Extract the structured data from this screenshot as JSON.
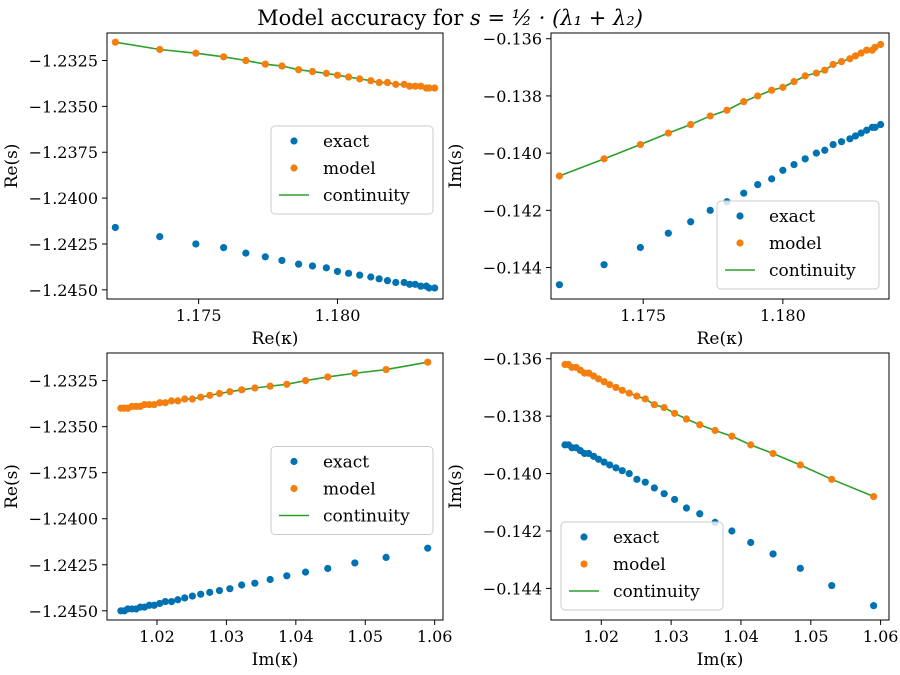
{
  "title": {
    "main": "Model accuracy for ",
    "expr": "s = ½ · (λ₁ + λ₂)"
  },
  "colors": {
    "exact": "#0072b2",
    "model": "#f47f0e",
    "continuity": "#2ca02c"
  },
  "chart_data": [
    {
      "type": "scatter",
      "xlabel": "Re(κ)",
      "ylabel": "Re(s)",
      "xlim": [
        1.1717,
        1.1838
      ],
      "ylim": [
        -1.2455,
        -1.231
      ],
      "xticks": [
        "1.175",
        "1.180"
      ],
      "yticks": [
        "−1.2325",
        "−1.2350",
        "−1.2375",
        "−1.2400",
        "−1.2425",
        "−1.2450"
      ],
      "xtick_values": [
        1.175,
        1.18
      ],
      "ytick_values": [
        -1.2325,
        -1.235,
        -1.2375,
        -1.24,
        -1.2425,
        -1.245
      ],
      "legend": [
        "exact",
        "model",
        "continuity"
      ],
      "legend_position": "center-right",
      "x": [
        1.172,
        1.1736,
        1.1749,
        1.1759,
        1.1767,
        1.1774,
        1.178,
        1.1786,
        1.1791,
        1.1796,
        1.18,
        1.1804,
        1.1808,
        1.1812,
        1.1815,
        1.1818,
        1.1821,
        1.1824,
        1.1826,
        1.1828,
        1.183,
        1.1832,
        1.1833,
        1.1835
      ],
      "series": [
        {
          "name": "exact",
          "kind": "scatter",
          "values": [
            -1.2416,
            -1.2421,
            -1.2425,
            -1.2427,
            -1.243,
            -1.2432,
            -1.2434,
            -1.2436,
            -1.2437,
            -1.2438,
            -1.244,
            -1.2441,
            -1.2442,
            -1.2443,
            -1.2444,
            -1.2445,
            -1.2446,
            -1.2446,
            -1.2447,
            -1.2447,
            -1.2448,
            -1.2448,
            -1.2449,
            -1.2449
          ]
        },
        {
          "name": "model",
          "kind": "scatter",
          "values": [
            -1.2315,
            -1.2319,
            -1.2321,
            -1.2323,
            -1.2325,
            -1.2327,
            -1.2328,
            -1.233,
            -1.2331,
            -1.2332,
            -1.2333,
            -1.2334,
            -1.2335,
            -1.2336,
            -1.2337,
            -1.2337,
            -1.2338,
            -1.2338,
            -1.2339,
            -1.2339,
            -1.2339,
            -1.234,
            -1.234,
            -1.234
          ]
        },
        {
          "name": "continuity",
          "kind": "line",
          "values": [
            -1.2315,
            -1.2319,
            -1.2321,
            -1.2323,
            -1.2325,
            -1.2327,
            -1.2328,
            -1.233,
            -1.2331,
            -1.2332,
            -1.2333,
            -1.2334,
            -1.2335,
            -1.2336,
            -1.2337,
            -1.2337,
            -1.2338,
            -1.2338,
            -1.2339,
            -1.2339,
            -1.2339,
            -1.234,
            -1.234,
            -1.234
          ]
        }
      ]
    },
    {
      "type": "scatter",
      "xlabel": "Re(κ)",
      "ylabel": "Im(s)",
      "xlim": [
        1.1717,
        1.1838
      ],
      "ylim": [
        -0.1451,
        -0.1358
      ],
      "xticks": [
        "1.175",
        "1.180"
      ],
      "yticks": [
        "−0.136",
        "−0.138",
        "−0.140",
        "−0.142",
        "−0.144"
      ],
      "xtick_values": [
        1.175,
        1.18
      ],
      "ytick_values": [
        -0.136,
        -0.138,
        -0.14,
        -0.142,
        -0.144
      ],
      "legend": [
        "exact",
        "model",
        "continuity"
      ],
      "legend_position": "lower-right",
      "x": [
        1.172,
        1.1736,
        1.1749,
        1.1759,
        1.1767,
        1.1774,
        1.178,
        1.1786,
        1.1791,
        1.1796,
        1.18,
        1.1804,
        1.1808,
        1.1812,
        1.1815,
        1.1818,
        1.1821,
        1.1824,
        1.1826,
        1.1828,
        1.183,
        1.1832,
        1.1833,
        1.1835
      ],
      "series": [
        {
          "name": "exact",
          "kind": "scatter",
          "values": [
            -0.1446,
            -0.1439,
            -0.1433,
            -0.1428,
            -0.1424,
            -0.142,
            -0.1417,
            -0.1414,
            -0.1411,
            -0.1409,
            -0.1406,
            -0.1404,
            -0.1402,
            -0.14,
            -0.1399,
            -0.1397,
            -0.1396,
            -0.1395,
            -0.1394,
            -0.1393,
            -0.1392,
            -0.1391,
            -0.1391,
            -0.139
          ]
        },
        {
          "name": "model",
          "kind": "scatter",
          "values": [
            -0.1408,
            -0.1402,
            -0.1397,
            -0.1393,
            -0.139,
            -0.1387,
            -0.1385,
            -0.1382,
            -0.138,
            -0.1378,
            -0.1377,
            -0.1375,
            -0.1373,
            -0.1372,
            -0.1371,
            -0.1369,
            -0.1368,
            -0.1367,
            -0.1366,
            -0.1365,
            -0.1364,
            -0.1364,
            -0.1363,
            -0.1362
          ]
        },
        {
          "name": "continuity",
          "kind": "line",
          "values": [
            -0.1408,
            -0.1402,
            -0.1397,
            -0.1393,
            -0.139,
            -0.1387,
            -0.1385,
            -0.1382,
            -0.138,
            -0.1378,
            -0.1377,
            -0.1375,
            -0.1373,
            -0.1372,
            -0.1371,
            -0.1369,
            -0.1368,
            -0.1367,
            -0.1366,
            -0.1365,
            -0.1364,
            -0.1364,
            -0.1363,
            -0.1362
          ]
        }
      ]
    },
    {
      "type": "scatter",
      "xlabel": "Im(κ)",
      "ylabel": "Re(s)",
      "xlim": [
        1.0128,
        1.0612
      ],
      "ylim": [
        -1.2455,
        -1.231
      ],
      "xticks": [
        "1.02",
        "1.03",
        "1.04",
        "1.05",
        "1.06"
      ],
      "yticks": [
        "−1.2325",
        "−1.2350",
        "−1.2375",
        "−1.2400",
        "−1.2425",
        "−1.2450"
      ],
      "xtick_values": [
        1.02,
        1.03,
        1.04,
        1.05,
        1.06
      ],
      "ytick_values": [
        -1.2325,
        -1.235,
        -1.2375,
        -1.24,
        -1.2425,
        -1.245
      ],
      "legend": [
        "exact",
        "model",
        "continuity"
      ],
      "legend_position": "center-right",
      "x": [
        1.059,
        1.053,
        1.0485,
        1.0446,
        1.0414,
        1.0387,
        1.0363,
        1.0341,
        1.0322,
        1.0305,
        1.029,
        1.0276,
        1.0263,
        1.0251,
        1.024,
        1.023,
        1.0221,
        1.0212,
        1.0204,
        1.0196,
        1.0189,
        1.0182,
        1.0176,
        1.017,
        1.0164,
        1.0158,
        1.0153,
        1.0148
      ],
      "series": [
        {
          "name": "exact",
          "kind": "scatter",
          "values": [
            -1.2416,
            -1.2421,
            -1.2424,
            -1.2427,
            -1.2429,
            -1.2431,
            -1.2433,
            -1.2435,
            -1.2436,
            -1.2438,
            -1.2439,
            -1.244,
            -1.2441,
            -1.2442,
            -1.2443,
            -1.2444,
            -1.2445,
            -1.2445,
            -1.2446,
            -1.2447,
            -1.2447,
            -1.2448,
            -1.2448,
            -1.2449,
            -1.2449,
            -1.2449,
            -1.245,
            -1.245
          ]
        },
        {
          "name": "model",
          "kind": "scatter",
          "values": [
            -1.2315,
            -1.2319,
            -1.2321,
            -1.2323,
            -1.2325,
            -1.2327,
            -1.2328,
            -1.2329,
            -1.233,
            -1.2331,
            -1.2332,
            -1.2333,
            -1.2334,
            -1.2335,
            -1.2335,
            -1.2336,
            -1.2336,
            -1.2337,
            -1.2337,
            -1.2338,
            -1.2338,
            -1.2338,
            -1.2339,
            -1.2339,
            -1.2339,
            -1.234,
            -1.234,
            -1.234
          ]
        },
        {
          "name": "continuity",
          "kind": "line",
          "values": [
            -1.2315,
            -1.2319,
            -1.2321,
            -1.2323,
            -1.2325,
            -1.2327,
            -1.2328,
            -1.2329,
            -1.233,
            -1.2331,
            -1.2332,
            -1.2333,
            -1.2334,
            -1.2335,
            -1.2335,
            -1.2336,
            -1.2336,
            -1.2337,
            -1.2337,
            -1.2338,
            -1.2338,
            -1.2338,
            -1.2339,
            -1.2339,
            -1.2339,
            -1.234,
            -1.234,
            -1.234
          ]
        }
      ]
    },
    {
      "type": "scatter",
      "xlabel": "Im(κ)",
      "ylabel": "Im(s)",
      "xlim": [
        1.0128,
        1.0612
      ],
      "ylim": [
        -0.1451,
        -0.1358
      ],
      "xticks": [
        "1.02",
        "1.03",
        "1.04",
        "1.05",
        "1.06"
      ],
      "yticks": [
        "−0.136",
        "−0.138",
        "−0.140",
        "−0.142",
        "−0.144"
      ],
      "xtick_values": [
        1.02,
        1.03,
        1.04,
        1.05,
        1.06
      ],
      "ytick_values": [
        -0.136,
        -0.138,
        -0.14,
        -0.142,
        -0.144
      ],
      "legend": [
        "exact",
        "model",
        "continuity"
      ],
      "legend_position": "lower-left",
      "x": [
        1.059,
        1.053,
        1.0485,
        1.0446,
        1.0414,
        1.0387,
        1.0363,
        1.0341,
        1.0322,
        1.0305,
        1.029,
        1.0276,
        1.0263,
        1.0251,
        1.024,
        1.023,
        1.0221,
        1.0212,
        1.0204,
        1.0196,
        1.0189,
        1.0182,
        1.0176,
        1.017,
        1.0164,
        1.0158,
        1.0153,
        1.0148
      ],
      "series": [
        {
          "name": "exact",
          "kind": "scatter",
          "values": [
            -0.1446,
            -0.1439,
            -0.1433,
            -0.1428,
            -0.1424,
            -0.142,
            -0.1417,
            -0.1414,
            -0.1412,
            -0.1409,
            -0.1407,
            -0.1405,
            -0.1403,
            -0.1402,
            -0.14,
            -0.1399,
            -0.1398,
            -0.1397,
            -0.1396,
            -0.1395,
            -0.1394,
            -0.1393,
            -0.1393,
            -0.1392,
            -0.1391,
            -0.1391,
            -0.139,
            -0.139
          ]
        },
        {
          "name": "model",
          "kind": "scatter",
          "values": [
            -0.1408,
            -0.1402,
            -0.1397,
            -0.1393,
            -0.139,
            -0.1387,
            -0.1385,
            -0.1383,
            -0.1381,
            -0.1379,
            -0.1377,
            -0.1376,
            -0.1374,
            -0.1373,
            -0.1372,
            -0.1371,
            -0.137,
            -0.1369,
            -0.1368,
            -0.1367,
            -0.1366,
            -0.1365,
            -0.1365,
            -0.1364,
            -0.1363,
            -0.1363,
            -0.1362,
            -0.1362
          ]
        },
        {
          "name": "continuity",
          "kind": "line",
          "values": [
            -0.1408,
            -0.1402,
            -0.1397,
            -0.1393,
            -0.139,
            -0.1387,
            -0.1385,
            -0.1383,
            -0.1381,
            -0.1379,
            -0.1377,
            -0.1376,
            -0.1374,
            -0.1373,
            -0.1372,
            -0.1371,
            -0.137,
            -0.1369,
            -0.1368,
            -0.1367,
            -0.1366,
            -0.1365,
            -0.1365,
            -0.1364,
            -0.1363,
            -0.1363,
            -0.1362,
            -0.1362
          ]
        }
      ]
    }
  ]
}
